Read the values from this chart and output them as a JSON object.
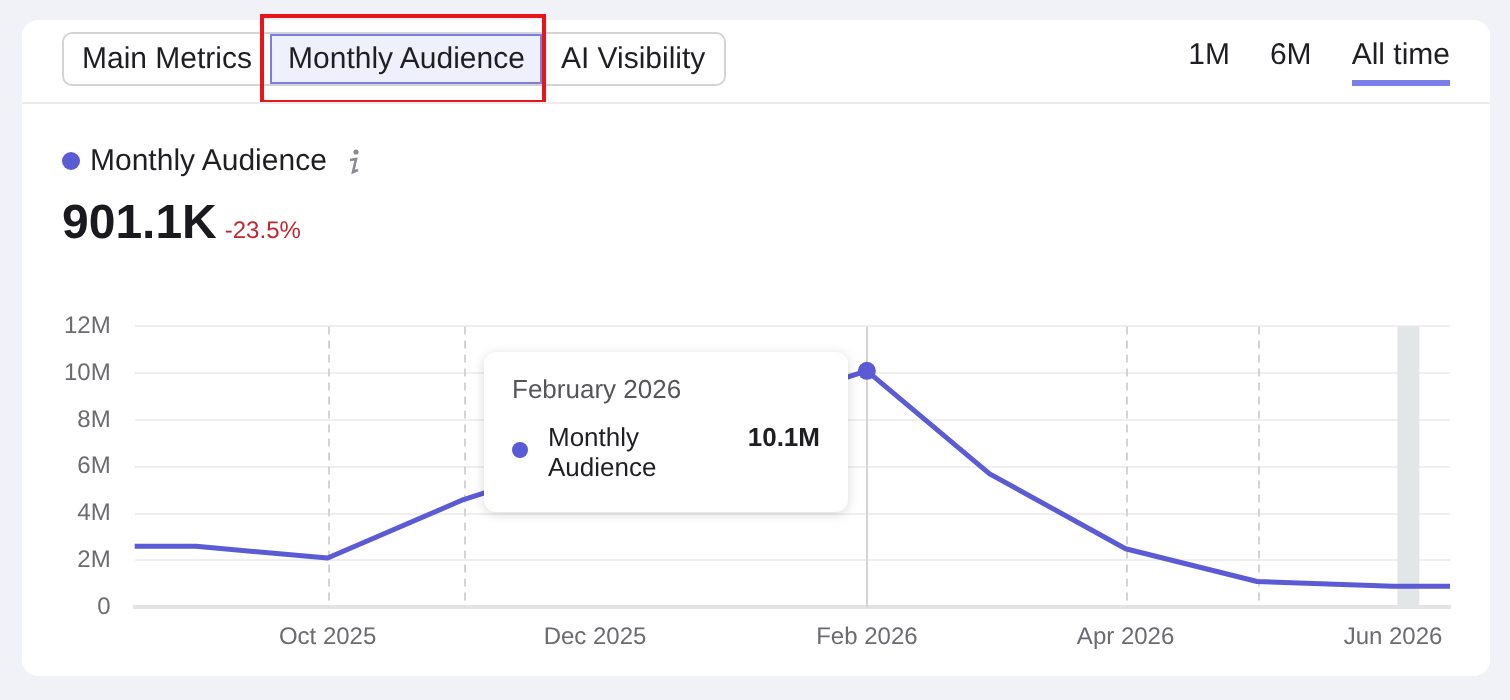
{
  "chart_data": {
    "type": "line",
    "title": "901.1K",
    "legend": "top left",
    "grid": "y",
    "marker": "none",
    "line_style": "solid",
    "x": [
      "2025-08-18",
      "2025-09",
      "2025-10",
      "2025-11",
      "2025-12",
      "2026-01",
      "2026-02",
      "2026-03",
      "2026-04",
      "2026-05",
      "2026-06",
      "2026-06-14"
    ],
    "series": [
      {
        "name": "Monthly Audience",
        "color": "#5b5bd6",
        "values": [
          2.6,
          2.6,
          2.1,
          4.6,
          null,
          null,
          10.1,
          5.7,
          2.5,
          1.1,
          0.9,
          0.9
        ]
      }
    ],
    "xlim": [
      "2025-08-18",
      "2026-06-14"
    ],
    "xticks": [
      {
        "value": "2025-10",
        "label": "Oct 2025"
      },
      {
        "value": "2025-12",
        "label": "Dec 2025"
      },
      {
        "value": "2026-02",
        "label": "Feb 2026"
      },
      {
        "value": "2026-04",
        "label": "Apr 2026"
      },
      {
        "value": "2026-06",
        "label": "Jun 2026"
      }
    ],
    "ylim": [
      0,
      12
    ],
    "yticks": [
      0,
      {
        "value": 2,
        "label": "2M"
      },
      {
        "value": 4,
        "label": "4M"
      },
      {
        "value": 6,
        "label": "6M"
      },
      {
        "value": 8,
        "label": "8M"
      },
      {
        "value": 10,
        "label": "10M"
      },
      {
        "value": 12,
        "label": "12M"
      }
    ],
    "ref_lines": [
      {
        "axis": "x",
        "value": "2025-10",
        "color": "#d4d4d8",
        "line_style": "dashed"
      },
      {
        "axis": "x",
        "value": "2025-11",
        "color": "#d4d4d8",
        "line_style": "dashed"
      },
      {
        "axis": "x",
        "value": "2026-02",
        "color": "#d4d4d8",
        "line_style": "solid"
      },
      {
        "axis": "x",
        "value": "2026-04",
        "color": "#d4d4d8",
        "line_style": "dashed"
      },
      {
        "axis": "x",
        "value": "2026-05",
        "color": "#d4d4d8",
        "line_style": "dashed"
      }
    ],
    "bands": [
      {
        "axis": "x",
        "from": "2026-06-02",
        "to": "2026-06-07",
        "color": "#e3e6e6"
      }
    ],
    "annotations": [
      "Main Metrics",
      "Monthly Audience",
      "AI Visibility",
      "1M",
      "6M",
      "All time",
      "-23.5%",
      "February 2026",
      "10.1M"
    ]
  }
}
